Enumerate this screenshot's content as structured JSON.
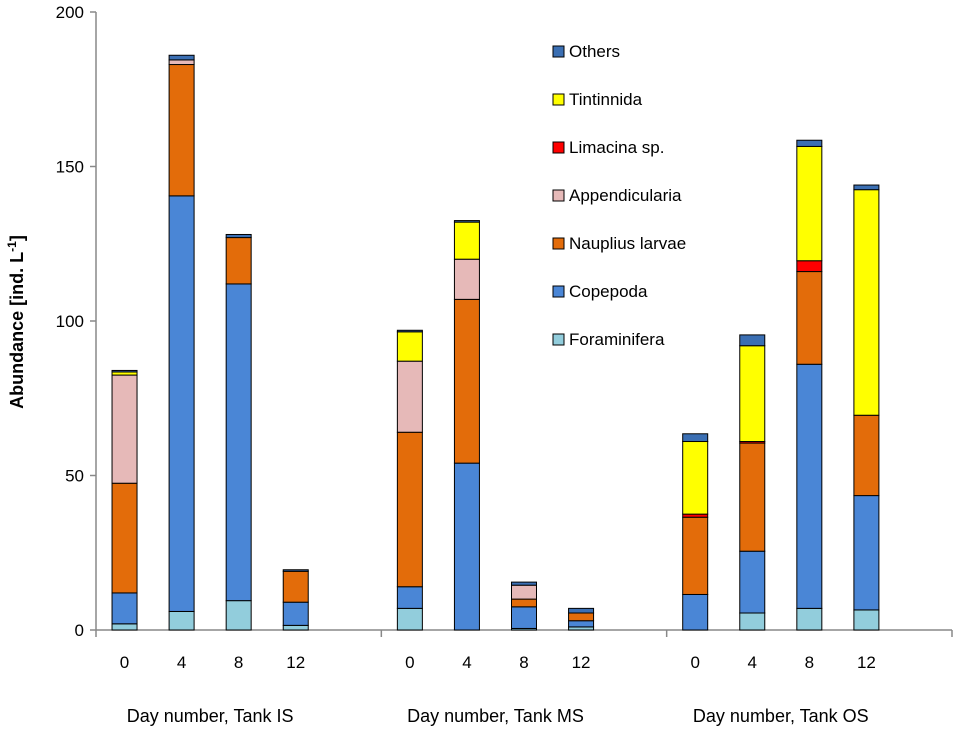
{
  "chart_data": {
    "type": "bar",
    "stacked": true,
    "title": "",
    "ylabel": "Abundance [ind. L",
    "ylabel_superscript": "-1",
    "ylabel_suffix": "]",
    "ylim": [
      0,
      200
    ],
    "yticks": [
      0,
      50,
      100,
      150,
      200
    ],
    "grid": false,
    "legend_position": "top-right",
    "groups": [
      {
        "label": "Day number, Tank IS",
        "categories": [
          "0",
          "4",
          "8",
          "12"
        ]
      },
      {
        "label": "Day number, Tank MS",
        "categories": [
          "0",
          "4",
          "8",
          "12"
        ]
      },
      {
        "label": "Day number, Tank OS",
        "categories": [
          "0",
          "4",
          "8",
          "12"
        ]
      }
    ],
    "series": [
      {
        "name": "Foraminifera",
        "color": "#92cddc",
        "values": [
          2,
          6,
          9.5,
          1.5,
          7,
          0,
          0.5,
          1,
          0,
          5.5,
          7,
          6.5
        ]
      },
      {
        "name": "Copepoda",
        "color": "#4a86d6",
        "values": [
          10,
          134.5,
          102.5,
          7.5,
          7,
          54,
          7,
          2,
          11.5,
          20,
          79,
          37
        ]
      },
      {
        "name": "Nauplius larvae",
        "color": "#e36c0a",
        "values": [
          35.5,
          42.5,
          15,
          10,
          50,
          53,
          2.5,
          2.5,
          25,
          35,
          30,
          26
        ]
      },
      {
        "name": "Appendicularia",
        "color": "#e6b9b8",
        "values": [
          35,
          1.5,
          0,
          0,
          23,
          13,
          4.5,
          0,
          0,
          0,
          0,
          0
        ]
      },
      {
        "name": "Limacina sp.",
        "color": "#ff0000",
        "values": [
          0,
          0,
          0,
          0,
          0,
          0,
          0,
          0,
          1,
          0.5,
          3.5,
          0
        ]
      },
      {
        "name": "Tintinnida",
        "color": "#ffff00",
        "values": [
          1,
          0,
          0,
          0,
          9.5,
          12,
          0,
          0,
          23.5,
          31,
          37,
          73
        ]
      },
      {
        "name": "Others",
        "color": "#3b6fb3",
        "values": [
          0.5,
          1.5,
          1,
          0.5,
          0.5,
          0.5,
          1,
          1.5,
          2.5,
          3.5,
          2,
          1.5
        ]
      }
    ],
    "legend_order": [
      "Others",
      "Tintinnida",
      "Limacina sp.",
      "Appendicularia",
      "Nauplius larvae",
      "Copepoda",
      "Foraminifera"
    ]
  }
}
